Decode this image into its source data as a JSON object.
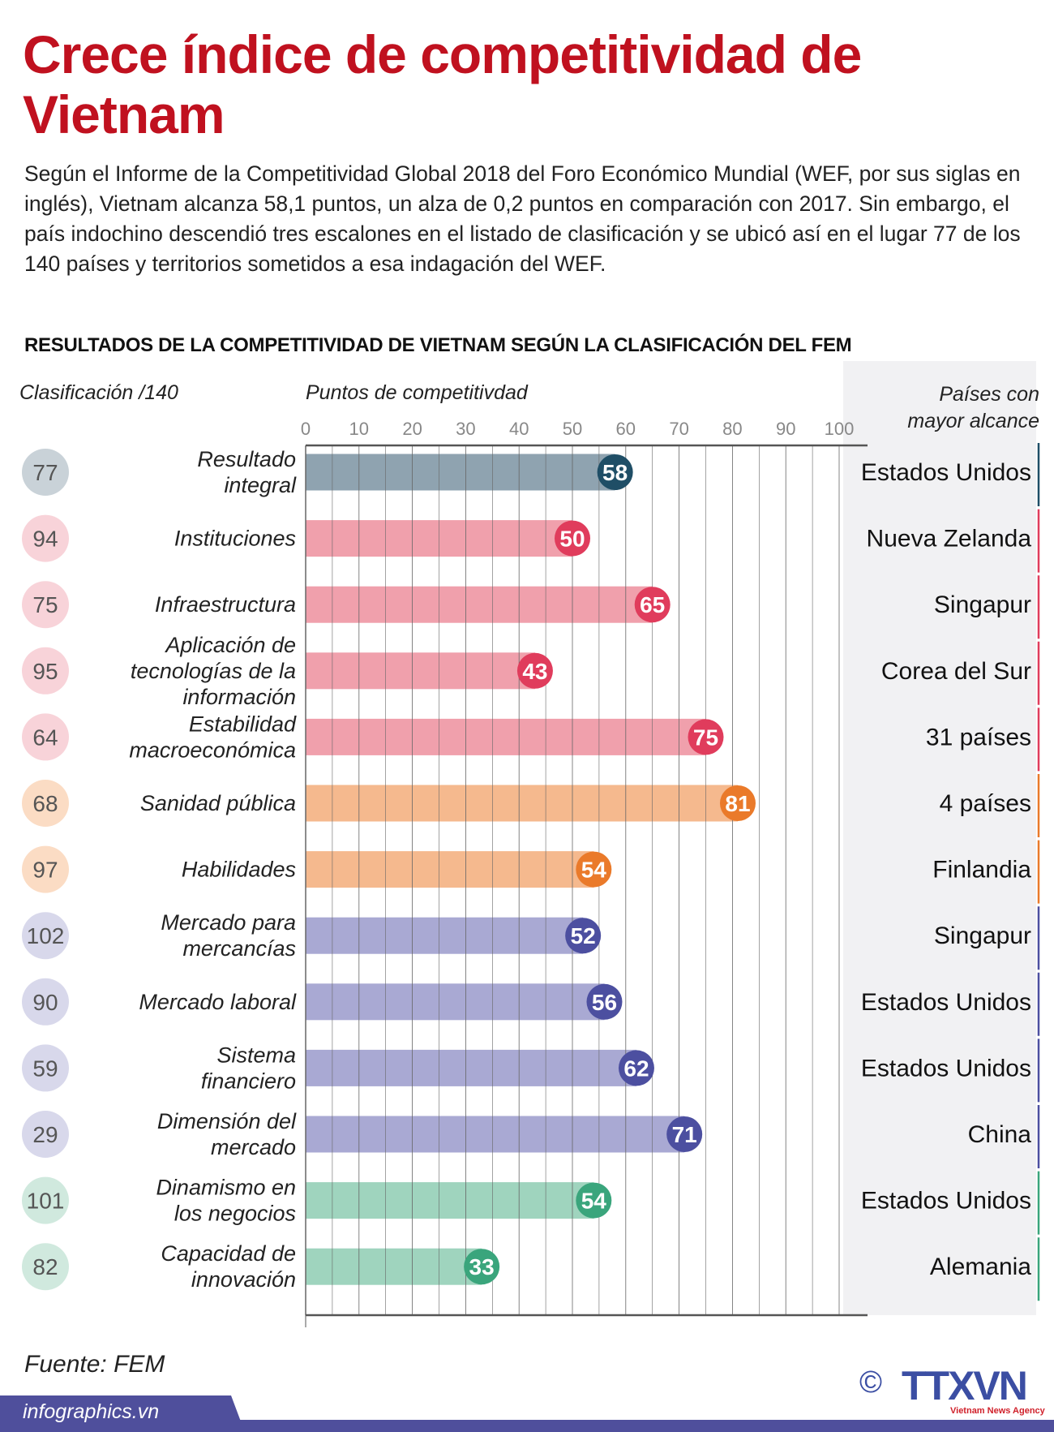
{
  "title": "Crece índice de competitividad de Vietnam",
  "intro": "Según el Informe de la Competitividad Global 2018 del Foro Económico Mundial (WEF, por sus siglas en inglés), Vietnam alcanza 58,1 puntos, un alza de 0,2 puntos en comparación con 2017. Sin embargo, el país indochino descendió tres escalones en el listado de clasificación y se ubicó así en el lugar 77 de los 140 países y territorios sometidos a esa indagación del WEF.",
  "source": "Fuente: FEM",
  "footer": {
    "site": "infographics.vn",
    "copyright": "©",
    "logo": "TTXVN",
    "logo_sub": "Vietnam News Agency"
  },
  "chart_data": {
    "type": "bar",
    "orientation": "horizontal",
    "title": "RESULTADOS DE LA COMPETITIVIDAD DE VIETNAM SEGÚN LA CLASIFICACIÓN DEL FEM",
    "rank_header": "Clasificación  /140",
    "xlabel": "Puntos de competitivdad",
    "country_header": "Países con mayor alcance",
    "xlim": [
      0,
      100
    ],
    "xticks": [
      0,
      10,
      20,
      30,
      40,
      50,
      60,
      70,
      80,
      90,
      100
    ],
    "grid": true,
    "rows": [
      {
        "category": "Resultado integral",
        "rank": 77,
        "value": 58,
        "leader": "Estados Unidos",
        "group": "overall"
      },
      {
        "category": "Instituciones",
        "rank": 94,
        "value": 50,
        "leader": "Nueva Zelanda",
        "group": "red"
      },
      {
        "category": "Infraestructura",
        "rank": 75,
        "value": 65,
        "leader": "Singapur",
        "group": "red"
      },
      {
        "category": "Aplicación de tecnologías de la información",
        "rank": 95,
        "value": 43,
        "leader": "Corea del Sur",
        "group": "red"
      },
      {
        "category": "Estabilidad macroeconómica",
        "rank": 64,
        "value": 75,
        "leader": "31 países",
        "group": "red"
      },
      {
        "category": "Sanidad pública",
        "rank": 68,
        "value": 81,
        "leader": "4 países",
        "group": "orange"
      },
      {
        "category": "Habilidades",
        "rank": 97,
        "value": 54,
        "leader": "Finlandia",
        "group": "orange"
      },
      {
        "category": "Mercado para mercancías",
        "rank": 102,
        "value": 52,
        "leader": "Singapur",
        "group": "purple"
      },
      {
        "category": "Mercado laboral",
        "rank": 90,
        "value": 56,
        "leader": "Estados Unidos",
        "group": "purple"
      },
      {
        "category": "Sistema financiero",
        "rank": 59,
        "value": 62,
        "leader": "Estados Unidos",
        "group": "purple"
      },
      {
        "category": "Dimensión del mercado",
        "rank": 29,
        "value": 71,
        "leader": "China",
        "group": "purple"
      },
      {
        "category": "Dinamismo en los negocios",
        "rank": 101,
        "value": 54,
        "leader": "Estados Unidos",
        "group": "green"
      },
      {
        "category": "Capacidad de innovación",
        "rank": 82,
        "value": 33,
        "leader": "Alemania",
        "group": "green"
      }
    ],
    "colors": {
      "overall": {
        "bar": "#8fa3b0",
        "dot": "#1f4e66",
        "rank": "#c9d2d8",
        "line": "#1f4e66"
      },
      "red": {
        "bar": "#f0a0ac",
        "dot": "#e03c5c",
        "rank": "#f8d3d9",
        "line": "#e03c5c"
      },
      "orange": {
        "bar": "#f5b98e",
        "dot": "#ea7a2a",
        "rank": "#fbdcc4",
        "line": "#ea7a2a"
      },
      "purple": {
        "bar": "#a9a9d3",
        "dot": "#4c4fa0",
        "rank": "#d8d8eb",
        "line": "#4c4fa0"
      },
      "green": {
        "bar": "#9fd4be",
        "dot": "#3aa57c",
        "rank": "#d0e9de",
        "line": "#3aa57c"
      }
    }
  }
}
